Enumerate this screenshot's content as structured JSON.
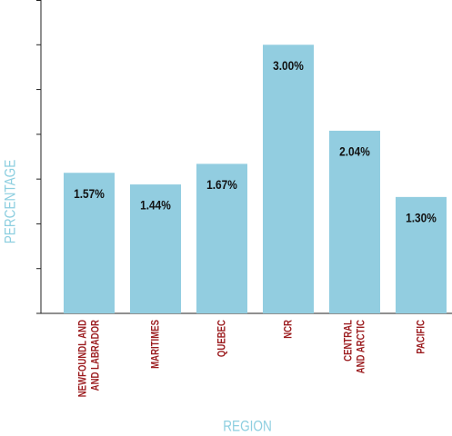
{
  "chart_data": {
    "type": "bar",
    "x_label": "REGION",
    "y_label": "PERCENTAGE",
    "categories": [
      [
        "NEWFOUNDL AND",
        "AND LABRADOR"
      ],
      [
        "MARITIMES"
      ],
      [
        "QUEBEC"
      ],
      [
        "NCR"
      ],
      [
        "CENTRAL",
        "AND ARCTIC"
      ],
      [
        "PACIFIC"
      ]
    ],
    "values": [
      1.57,
      1.44,
      1.67,
      3.0,
      2.04,
      1.3
    ],
    "value_labels": [
      "1.57%",
      "1.44%",
      "1.67%",
      "3.00%",
      "2.04%",
      "1.30%"
    ],
    "color": "#92cde0",
    "ylim": [
      0,
      3.5
    ],
    "yticks": [
      0,
      0.5,
      1,
      1.5,
      2,
      2.5,
      3,
      3.5
    ],
    "grid": false
  }
}
